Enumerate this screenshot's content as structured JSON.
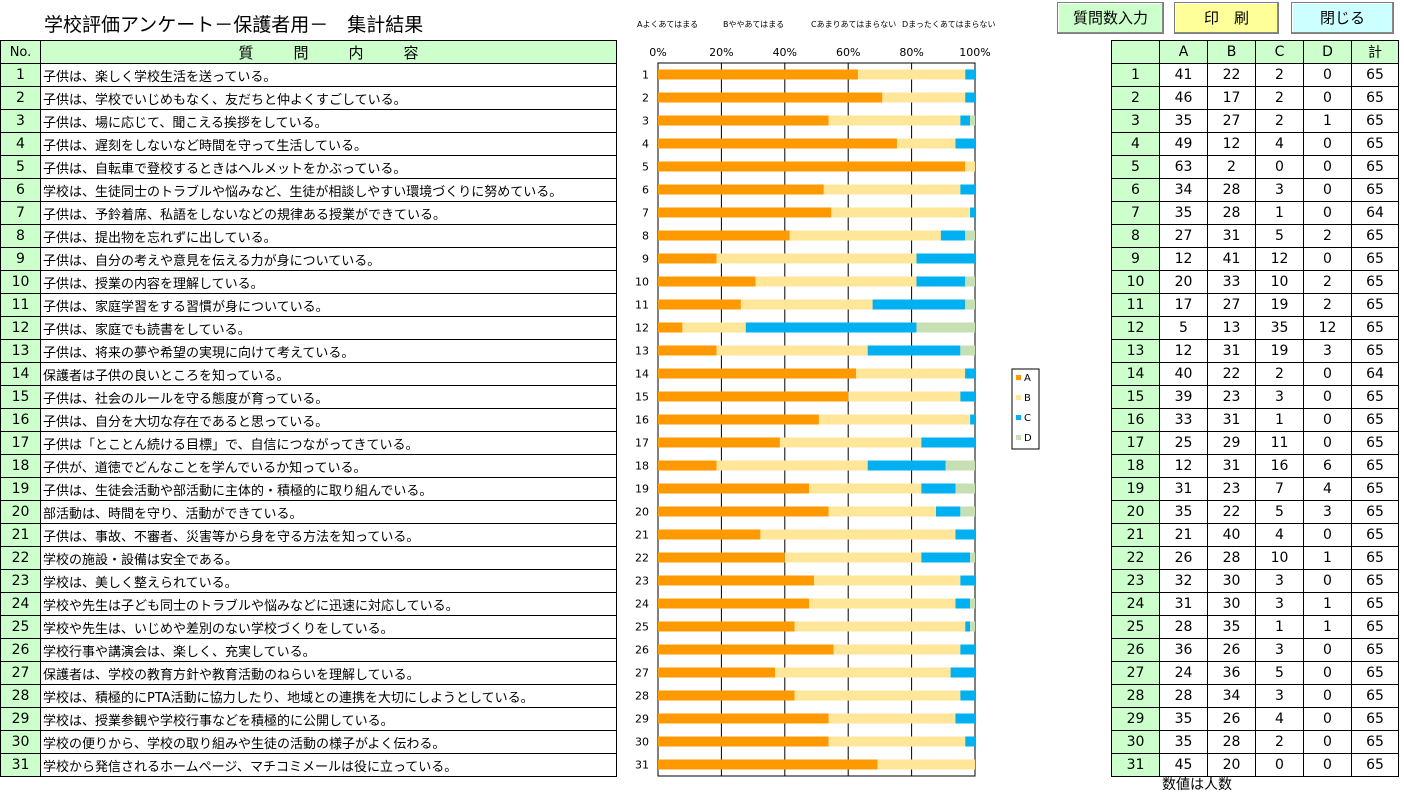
{
  "title": "学校評価アンケート－保護者用－　集計結果",
  "buttons": {
    "questions": "質問数入力",
    "print": "印　刷",
    "close": "閉じる"
  },
  "legend_top": {
    "a": "Aよくあてはまる",
    "b": "Bややあてはまる",
    "c": "Cあまりあてはまらない",
    "d": "Dまったくあてはまらない"
  },
  "table": {
    "no_header": "No.",
    "question_header": "質問内容"
  },
  "count_table": {
    "headers": [
      "",
      "A",
      "B",
      "C",
      "D",
      "計"
    ]
  },
  "note": "数値は人数",
  "colors": {
    "A": "#ff9900",
    "B": "#ffe699",
    "C": "#00b0f0",
    "D": "#c6e0b4",
    "header_bg": "#ccffcc"
  },
  "questions": [
    "子供は、楽しく学校生活を送っている。",
    "子供は、学校でいじめもなく、友だちと仲よくすごしている。",
    "子供は、場に応じて、聞こえる挨拶をしている。",
    "子供は、遅刻をしないなど時間を守って生活している。",
    "子供は、自転車で登校するときはヘルメットをかぶっている。",
    "学校は、生徒同士のトラブルや悩みなど、生徒が相談しやすい環境づくりに努めている。",
    "子供は、予鈴着席、私語をしないなどの規律ある授業ができている。",
    "子供は、提出物を忘れずに出している。",
    "子供は、自分の考えや意見を伝える力が身についている。",
    "子供は、授業の内容を理解している。",
    "子供は、家庭学習をする習慣が身についている。",
    "子供は、家庭でも読書をしている。",
    "子供は、将来の夢や希望の実現に向けて考えている。",
    "保護者は子供の良いところを知っている。",
    "子供は、社会のルールを守る態度が育っている。",
    "子供は、自分を大切な存在であると思っている。",
    "子供は「とことん続ける目標」で、自信につながってきている。",
    "子供が、道徳でどんなことを学んでいるか知っている。",
    "子供は、生徒会活動や部活動に主体的・積極的に取り組んでいる。",
    "部活動は、時間を守り、活動ができている。",
    "子供は、事故、不審者、災害等から身を守る方法を知っている。",
    "学校の施設・設備は安全である。",
    "学校は、美しく整えられている。",
    "学校や先生は子ども同士のトラブルや悩みなどに迅速に対応している。",
    "学校や先生は、いじめや差別のない学校づくりをしている。",
    "学校行事や講演会は、楽しく、充実している。",
    "保護者は、学校の教育方針や教育活動のねらいを理解している。",
    "学校は、積極的にPTA活動に協力したり、地域との連携を大切にしようとしている。",
    "学校は、授業参観や学校行事などを積極的に公開している。",
    "学校の便りから、学校の取り組みや生徒の活動の様子がよく伝わる。",
    "学校から発信されるホームページ、マチコミメールは役に立っている。"
  ],
  "chart_data": {
    "type": "bar",
    "stacked": "percent",
    "orientation": "horizontal",
    "categories": [
      "1",
      "2",
      "3",
      "4",
      "5",
      "6",
      "7",
      "8",
      "9",
      "10",
      "11",
      "12",
      "13",
      "14",
      "15",
      "16",
      "17",
      "18",
      "19",
      "20",
      "21",
      "22",
      "23",
      "24",
      "25",
      "26",
      "27",
      "28",
      "29",
      "30",
      "31"
    ],
    "x_ticks": [
      "0%",
      "20%",
      "40%",
      "60%",
      "80%",
      "100%"
    ],
    "xlim": [
      0,
      100
    ],
    "grid": true,
    "legend_position": "right",
    "series": [
      {
        "name": "A",
        "values": [
          41,
          46,
          35,
          49,
          63,
          34,
          35,
          27,
          12,
          20,
          17,
          5,
          12,
          40,
          39,
          33,
          25,
          12,
          31,
          35,
          21,
          26,
          32,
          31,
          28,
          36,
          24,
          28,
          35,
          35,
          45
        ]
      },
      {
        "name": "B",
        "values": [
          22,
          17,
          27,
          12,
          2,
          28,
          28,
          31,
          41,
          33,
          27,
          13,
          31,
          22,
          23,
          31,
          29,
          31,
          23,
          22,
          40,
          28,
          30,
          30,
          35,
          26,
          36,
          34,
          26,
          28,
          20
        ]
      },
      {
        "name": "C",
        "values": [
          2,
          2,
          2,
          4,
          0,
          3,
          1,
          5,
          12,
          10,
          19,
          35,
          19,
          2,
          3,
          1,
          11,
          16,
          7,
          5,
          4,
          10,
          3,
          3,
          1,
          3,
          5,
          3,
          4,
          2,
          0
        ]
      },
      {
        "name": "D",
        "values": [
          0,
          0,
          1,
          0,
          0,
          0,
          0,
          2,
          0,
          2,
          2,
          12,
          3,
          0,
          0,
          0,
          0,
          6,
          4,
          3,
          0,
          1,
          0,
          1,
          1,
          0,
          0,
          0,
          0,
          0,
          0
        ]
      }
    ],
    "totals": [
      65,
      65,
      65,
      65,
      65,
      65,
      64,
      65,
      65,
      65,
      65,
      65,
      65,
      64,
      65,
      65,
      65,
      65,
      65,
      65,
      65,
      65,
      65,
      65,
      65,
      65,
      65,
      65,
      65,
      65,
      65
    ]
  }
}
